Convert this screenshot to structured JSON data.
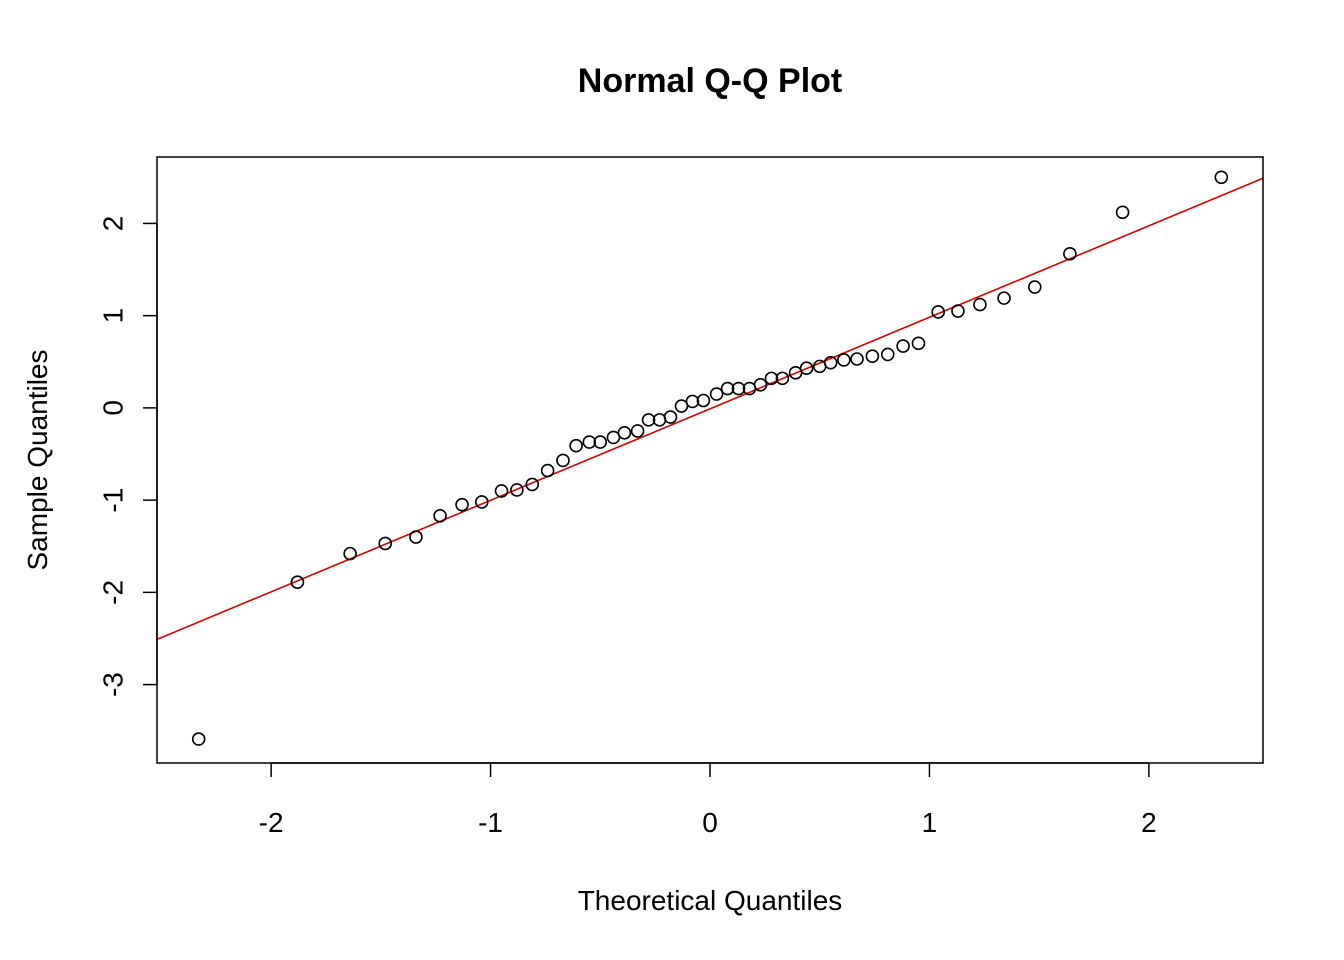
{
  "chart_data": {
    "type": "scatter",
    "title": "Normal Q-Q Plot",
    "xlabel": "Theoretical Quantiles",
    "ylabel": "Sample Quantiles",
    "xlim": [
      -2.52,
      2.52
    ],
    "ylim": [
      -3.85,
      2.72
    ],
    "x_ticks": [
      -2,
      -1,
      0,
      1,
      2
    ],
    "x_tick_labels": [
      "-2",
      "-1",
      "0",
      "1",
      "2"
    ],
    "y_ticks": [
      -3,
      -2,
      -1,
      0,
      1,
      2
    ],
    "y_tick_labels": [
      "-3",
      "-2",
      "-1",
      "0",
      "1",
      "2"
    ],
    "grid": false,
    "point_style": "open-circle",
    "point_color": "#000000",
    "line_color": "#dd0000",
    "points": [
      {
        "x": -2.33,
        "y": -3.59
      },
      {
        "x": -1.88,
        "y": -1.89
      },
      {
        "x": -1.64,
        "y": -1.58
      },
      {
        "x": -1.48,
        "y": -1.47
      },
      {
        "x": -1.34,
        "y": -1.4
      },
      {
        "x": -1.23,
        "y": -1.17
      },
      {
        "x": -1.13,
        "y": -1.05
      },
      {
        "x": -1.04,
        "y": -1.02
      },
      {
        "x": -0.95,
        "y": -0.9
      },
      {
        "x": -0.88,
        "y": -0.89
      },
      {
        "x": -0.81,
        "y": -0.83
      },
      {
        "x": -0.74,
        "y": -0.68
      },
      {
        "x": -0.67,
        "y": -0.57
      },
      {
        "x": -0.61,
        "y": -0.41
      },
      {
        "x": -0.55,
        "y": -0.37
      },
      {
        "x": -0.5,
        "y": -0.37
      },
      {
        "x": -0.44,
        "y": -0.32
      },
      {
        "x": -0.39,
        "y": -0.27
      },
      {
        "x": -0.33,
        "y": -0.25
      },
      {
        "x": -0.28,
        "y": -0.13
      },
      {
        "x": -0.23,
        "y": -0.13
      },
      {
        "x": -0.18,
        "y": -0.1
      },
      {
        "x": -0.13,
        "y": 0.02
      },
      {
        "x": -0.08,
        "y": 0.07
      },
      {
        "x": -0.03,
        "y": 0.08
      },
      {
        "x": 0.03,
        "y": 0.15
      },
      {
        "x": 0.08,
        "y": 0.21
      },
      {
        "x": 0.13,
        "y": 0.21
      },
      {
        "x": 0.18,
        "y": 0.21
      },
      {
        "x": 0.23,
        "y": 0.25
      },
      {
        "x": 0.28,
        "y": 0.32
      },
      {
        "x": 0.33,
        "y": 0.32
      },
      {
        "x": 0.39,
        "y": 0.38
      },
      {
        "x": 0.44,
        "y": 0.43
      },
      {
        "x": 0.5,
        "y": 0.45
      },
      {
        "x": 0.55,
        "y": 0.49
      },
      {
        "x": 0.61,
        "y": 0.52
      },
      {
        "x": 0.67,
        "y": 0.53
      },
      {
        "x": 0.74,
        "y": 0.56
      },
      {
        "x": 0.81,
        "y": 0.58
      },
      {
        "x": 0.88,
        "y": 0.67
      },
      {
        "x": 0.95,
        "y": 0.7
      },
      {
        "x": 1.04,
        "y": 1.04
      },
      {
        "x": 1.13,
        "y": 1.05
      },
      {
        "x": 1.23,
        "y": 1.12
      },
      {
        "x": 1.34,
        "y": 1.19
      },
      {
        "x": 1.48,
        "y": 1.31
      },
      {
        "x": 1.64,
        "y": 1.67
      },
      {
        "x": 1.88,
        "y": 2.12
      },
      {
        "x": 2.33,
        "y": 2.5
      }
    ],
    "reference_line": {
      "x": [
        -2.52,
        2.52
      ],
      "y": [
        -2.51,
        2.49
      ]
    }
  }
}
